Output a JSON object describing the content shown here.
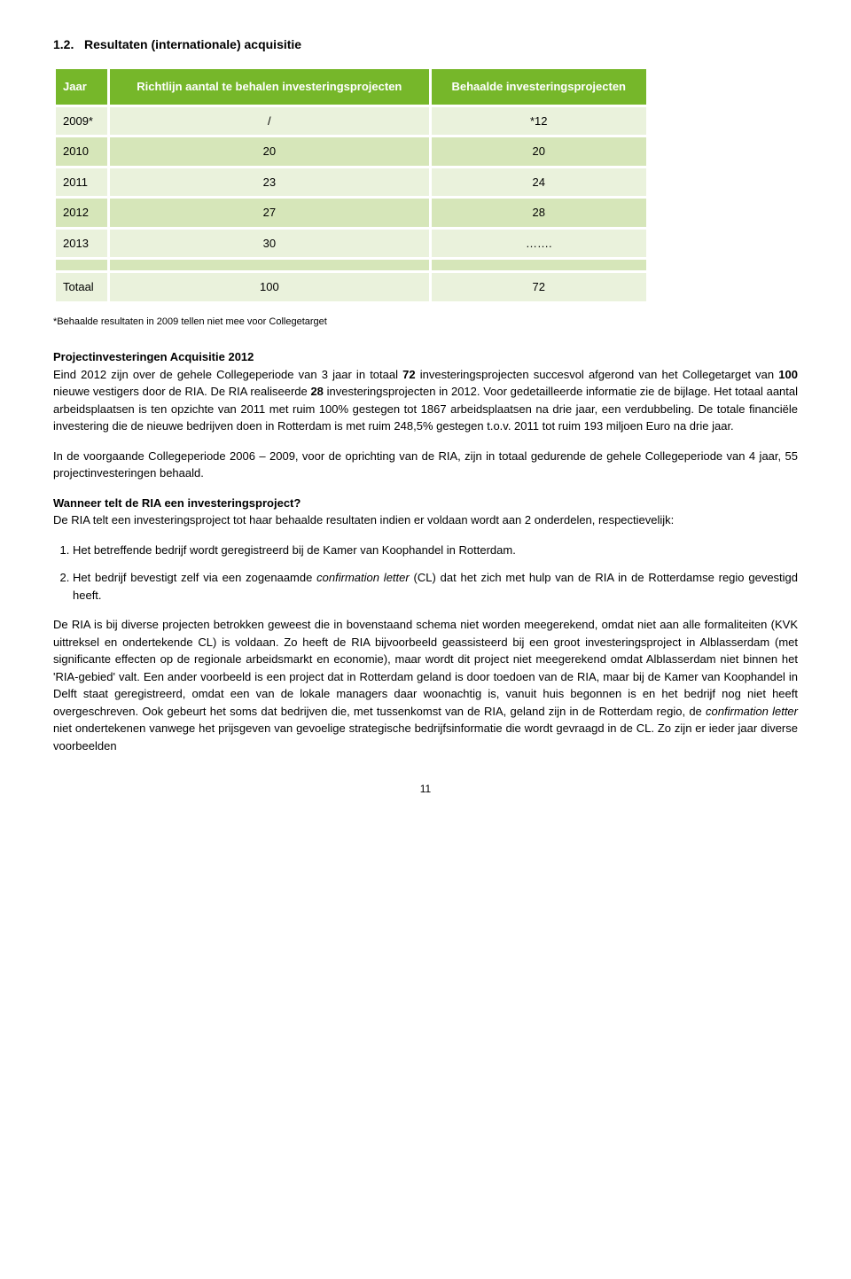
{
  "section": {
    "number": "1.2.",
    "title": "Resultaten (internationale) acquisitie"
  },
  "table": {
    "headers": [
      "Jaar",
      "Richtlijn aantal te behalen investeringsprojecten",
      "Behaalde investeringsprojecten"
    ],
    "rows": [
      {
        "cells": [
          "2009*",
          "/",
          "*12"
        ],
        "shade": "light"
      },
      {
        "cells": [
          "2010",
          "20",
          "20"
        ],
        "shade": "dark"
      },
      {
        "cells": [
          "2011",
          "23",
          "24"
        ],
        "shade": "light"
      },
      {
        "cells": [
          "2012",
          "27",
          "28"
        ],
        "shade": "dark"
      },
      {
        "cells": [
          "2013",
          "30",
          "……."
        ],
        "shade": "light"
      },
      {
        "cells": [
          "",
          "",
          ""
        ],
        "shade": "dark"
      },
      {
        "cells": [
          "Totaal",
          "100",
          "72"
        ],
        "shade": "light",
        "total": true
      }
    ],
    "colors": {
      "header_bg": "#76b72a",
      "header_fg": "#ffffff",
      "row_light": "#eaf2dc",
      "row_dark": "#d6e6b9"
    }
  },
  "footnote": "*Behaalde resultaten in 2009 tellen niet mee voor Collegetarget",
  "para1": {
    "heading": "Projectinvesteringen Acquisitie 2012",
    "text_pre": "Eind 2012 zijn over de gehele Collegeperiode van 3 jaar in totaal ",
    "bold1": "72",
    "text_mid1": " investeringsprojecten succesvol afgerond van het Collegetarget van ",
    "bold2": "100",
    "text_mid2": " nieuwe vestigers door de RIA. De RIA realiseerde ",
    "bold3": "28",
    "text_after": " investeringsprojecten in 2012. Voor gedetailleerde informatie zie de bijlage. Het totaal aantal arbeidsplaatsen is ten opzichte van 2011 met ruim 100% gestegen tot 1867 arbeidsplaatsen na drie jaar, een verdubbeling. De totale financiële investering die de nieuwe bedrijven doen in Rotterdam is met ruim 248,5% gestegen t.o.v. 2011 tot ruim 193 miljoen Euro na drie jaar."
  },
  "para2": "In de voorgaande Collegeperiode 2006 – 2009, voor de oprichting van de RIA, zijn in totaal gedurende de gehele Collegeperiode van 4 jaar, 55 projectinvesteringen behaald.",
  "para3": {
    "heading": "Wanneer telt de RIA een investeringsproject?",
    "text": "De RIA telt een investeringsproject tot haar behaalde resultaten indien er voldaan wordt aan 2 onderdelen, respectievelijk:"
  },
  "list": {
    "item1": "Het betreffende bedrijf wordt geregistreerd bij de Kamer van Koophandel in Rotterdam.",
    "item2_pre": "Het bedrijf bevestigt zelf via een zogenaamde ",
    "item2_italic": "confirmation letter",
    "item2_post": " (CL) dat het zich met hulp van de RIA in de Rotterdamse regio gevestigd heeft."
  },
  "para4_pre": "De RIA is bij diverse projecten betrokken geweest die in bovenstaand schema niet worden meegerekend, omdat niet aan alle formaliteiten (KVK uittreksel en ondertekende CL) is voldaan. Zo heeft de RIA bijvoorbeeld geassisteerd bij een groot investeringsproject in Alblasserdam (met significante effecten op de regionale arbeidsmarkt en economie), maar wordt dit project niet meegerekend omdat Alblasserdam niet binnen het 'RIA-gebied' valt. Een ander voorbeeld is een project dat in Rotterdam geland is door toedoen van de RIA, maar bij de Kamer van Koophandel in Delft staat geregistreerd, omdat een van de lokale managers daar woonachtig is, vanuit huis begonnen is en het bedrijf nog niet heeft overgeschreven. Ook gebeurt het soms dat bedrijven die, met tussenkomst van de RIA, geland zijn in de Rotterdam regio, de ",
  "para4_italic": "confirmation letter",
  "para4_post": " niet ondertekenen vanwege het prijsgeven van gevoelige strategische bedrijfsinformatie die wordt gevraagd in de CL. Zo zijn er ieder jaar diverse voorbeelden",
  "page_number": "11"
}
